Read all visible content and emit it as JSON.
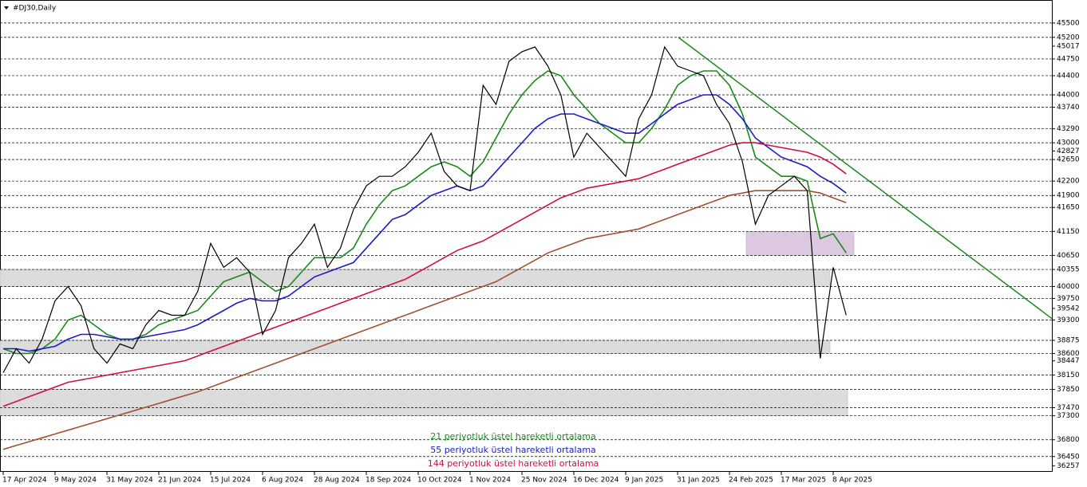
{
  "chart_data": {
    "type": "line",
    "title": "#DJ30,Daily",
    "categories": [
      "17 Apr 2024",
      null,
      null,
      null,
      "9 May 2024",
      null,
      null,
      null,
      "31 May 2024",
      null,
      null,
      null,
      "21 Jun 2024",
      null,
      null,
      null,
      "15 Jul 2024",
      null,
      null,
      null,
      "6 Aug 2024",
      null,
      null,
      null,
      "28 Aug 2024",
      null,
      null,
      null,
      "18 Sep 2024",
      null,
      null,
      null,
      "10 Oct 2024",
      null,
      null,
      null,
      "1 Nov 2024",
      null,
      null,
      null,
      "25 Nov 2024",
      null,
      null,
      null,
      "16 Dec 2024",
      null,
      null,
      null,
      "9 Jan 2025",
      null,
      null,
      null,
      "31 Jan 2025",
      null,
      null,
      null,
      "24 Feb 2025",
      null,
      null,
      null,
      "17 Mar 2025",
      null,
      null,
      null,
      "8 Apr 2025",
      null
    ],
    "price": {
      "color": "#000000",
      "values": [
        38200,
        38700,
        38400,
        38900,
        39700,
        40000,
        39600,
        38700,
        38400,
        38800,
        38700,
        39200,
        39500,
        39400,
        39400,
        39900,
        40900,
        40400,
        40600,
        40300,
        39000,
        39500,
        40600,
        40900,
        41300,
        40400,
        40800,
        41600,
        42100,
        42300,
        42300,
        42500,
        42800,
        43200,
        42400,
        42100,
        42000,
        44200,
        43800,
        44700,
        44900,
        45000,
        44600,
        44000,
        42700,
        43200,
        42900,
        42600,
        42300,
        43500,
        44000,
        45000,
        44600,
        44500,
        44400,
        43800,
        43400,
        42600,
        41300,
        41900,
        42100,
        42300,
        42000,
        38500,
        40400,
        39400
      ]
    },
    "series": [
      {
        "name": "21 periyotluk üstel hareketli ortalama",
        "color": "#1a8a1a",
        "values": [
          38700,
          38600,
          38600,
          38700,
          38900,
          39300,
          39400,
          39200,
          39000,
          38900,
          38900,
          39000,
          39200,
          39300,
          39400,
          39500,
          39800,
          40100,
          40200,
          40300,
          40100,
          39900,
          40000,
          40300,
          40600,
          40600,
          40600,
          40800,
          41300,
          41700,
          42000,
          42100,
          42300,
          42500,
          42600,
          42500,
          42300,
          42600,
          43100,
          43600,
          44000,
          44300,
          44500,
          44400,
          44000,
          43700,
          43400,
          43200,
          43000,
          43000,
          43300,
          43700,
          44200,
          44400,
          44500,
          44500,
          44200,
          43600,
          42700,
          42500,
          42300,
          42300,
          42200,
          41000,
          41100,
          40700
        ]
      },
      {
        "name": "55 periyotluk üstel hareketli ortalama",
        "color": "#1c1cc8",
        "values": [
          38700,
          38700,
          38650,
          38700,
          38750,
          38900,
          39000,
          39000,
          38950,
          38900,
          38900,
          38950,
          39000,
          39050,
          39100,
          39200,
          39350,
          39500,
          39650,
          39750,
          39700,
          39700,
          39800,
          40000,
          40200,
          40300,
          40400,
          40500,
          40800,
          41100,
          41400,
          41500,
          41700,
          41900,
          42000,
          42100,
          42000,
          42100,
          42400,
          42700,
          43000,
          43300,
          43500,
          43600,
          43600,
          43500,
          43400,
          43300,
          43200,
          43200,
          43400,
          43600,
          43800,
          43900,
          44000,
          44000,
          43800,
          43500,
          43100,
          42900,
          42700,
          42600,
          42500,
          42300,
          42150,
          41950
        ]
      },
      {
        "name": "144 periyotluk üstel hareketli ortalama",
        "color": "#d0103a",
        "values": [
          37500,
          37600,
          37700,
          37800,
          37900,
          38000,
          38050,
          38100,
          38150,
          38200,
          38250,
          38300,
          38350,
          38400,
          38450,
          38550,
          38650,
          38750,
          38850,
          38950,
          39050,
          39150,
          39250,
          39350,
          39450,
          39550,
          39650,
          39750,
          39850,
          39950,
          40050,
          40150,
          40300,
          40450,
          40600,
          40750,
          40850,
          40950,
          41100,
          41250,
          41400,
          41550,
          41700,
          41850,
          41950,
          42050,
          42100,
          42150,
          42200,
          42250,
          42350,
          42450,
          42550,
          42650,
          42750,
          42850,
          42950,
          43000,
          43000,
          42950,
          42900,
          42850,
          42800,
          42700,
          42550,
          42350
        ]
      },
      {
        "color": "#a0522d",
        "values": [
          36600,
          36680,
          36760,
          36840,
          36920,
          37000,
          37080,
          37160,
          37240,
          37320,
          37400,
          37480,
          37560,
          37640,
          37720,
          37800,
          37900,
          38000,
          38100,
          38200,
          38300,
          38400,
          38500,
          38600,
          38700,
          38800,
          38900,
          39000,
          39100,
          39200,
          39300,
          39400,
          39500,
          39600,
          39700,
          39800,
          39900,
          40000,
          40100,
          40250,
          40400,
          40550,
          40700,
          40800,
          40900,
          41000,
          41050,
          41100,
          41150,
          41200,
          41300,
          41400,
          41500,
          41600,
          41700,
          41800,
          41900,
          41950,
          42000,
          42000,
          42000,
          42000,
          42000,
          41950,
          41850,
          41750
        ]
      }
    ],
    "ylim": [
      36130,
      45980
    ],
    "yticks": [
      45500,
      45200,
      45017,
      44750,
      44400,
      44000,
      43740,
      43290,
      43000,
      42827,
      42650,
      42200,
      41900,
      41650,
      41150,
      40650,
      40355,
      40000,
      39750,
      39542,
      39300,
      38875,
      38600,
      38447,
      38150,
      37850,
      37470,
      37300,
      36800,
      36450,
      36257
    ],
    "levels": [
      45500,
      45200,
      44750,
      44400,
      44000,
      43740,
      43290,
      43000,
      42650,
      42200,
      41900,
      41650,
      41150,
      40650,
      40355,
      40000,
      39750,
      39300,
      38875,
      38600,
      38150,
      37850,
      37470,
      37300,
      36800,
      36450
    ],
    "zones": [
      {
        "low": 40000,
        "high": 40355,
        "color": "#dcdcdc"
      },
      {
        "low": 38600,
        "high": 38875,
        "color": "#dcdcdc"
      },
      {
        "low": 37300,
        "high": 37850,
        "color": "#dcdcdc"
      },
      {
        "low": 40650,
        "high": 41150,
        "color": "#dcc8e0"
      }
    ],
    "trendline": {
      "from": 45200,
      "to": 39330,
      "color": "#1a8a1a"
    }
  }
}
